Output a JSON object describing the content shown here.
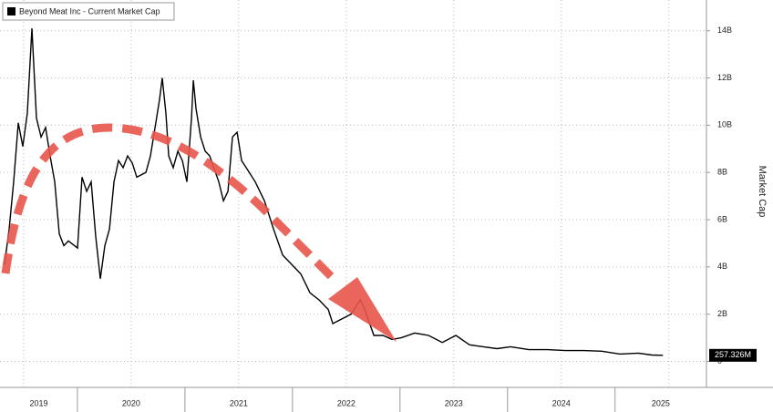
{
  "chart_data": {
    "type": "line",
    "title": "Beyond Meat Inc - Current Market Cap",
    "y_axis_label": "Market Cap",
    "x": [
      2019.322,
      2019.365,
      2019.407,
      2019.45,
      2019.492,
      2019.534,
      2019.577,
      2019.619,
      2019.662,
      2019.704,
      2019.746,
      2019.789,
      2019.831,
      2019.874,
      2019.916,
      2020.001,
      2020.043,
      2020.086,
      2020.128,
      2020.17,
      2020.213,
      2020.255,
      2020.298,
      2020.34,
      2020.382,
      2020.425,
      2020.467,
      2020.51,
      2020.552,
      2020.637,
      2020.679,
      2020.722,
      2020.764,
      2020.789,
      2020.823,
      2020.849,
      2020.891,
      2020.934,
      2020.976,
      2021.018,
      2021.061,
      2021.078,
      2021.103,
      2021.146,
      2021.188,
      2021.23,
      2021.315,
      2021.358,
      2021.4,
      2021.442,
      2021.485,
      2021.527,
      2021.57,
      2021.654,
      2021.739,
      2021.824,
      2021.909,
      2021.994,
      2022.078,
      2022.163,
      2022.248,
      2022.333,
      2022.375,
      2022.46,
      2022.545,
      2022.63,
      2022.672,
      2022.757,
      2022.842,
      2022.926,
      2023.011,
      2023.138,
      2023.266,
      2023.393,
      2023.52,
      2023.647,
      2023.774,
      2023.902,
      2024.029,
      2024.198,
      2024.368,
      2024.538,
      2024.707,
      2024.877,
      2025.046,
      2025.216,
      2025.343,
      2025.445
    ],
    "series": [
      {
        "name": "Beyond Meat Inc - Current Market Cap",
        "color": "#000000",
        "values": [
          4.1,
          5.6,
          7.6,
          10.1,
          9.1,
          10.5,
          14.1,
          10.3,
          9.5,
          9.9,
          8.7,
          7.6,
          5.4,
          4.9,
          5.1,
          4.8,
          7.8,
          7.2,
          7.6,
          5.3,
          3.5,
          4.9,
          5.6,
          7.6,
          8.5,
          8.2,
          8.7,
          8.4,
          7.8,
          8.0,
          8.7,
          9.9,
          11.1,
          12.0,
          10.5,
          8.7,
          8.2,
          8.9,
          8.5,
          7.6,
          10.3,
          11.9,
          10.7,
          9.5,
          8.9,
          8.7,
          7.6,
          6.8,
          7.2,
          9.5,
          9.7,
          8.5,
          8.2,
          7.6,
          6.8,
          5.6,
          4.5,
          4.1,
          3.7,
          2.9,
          2.6,
          2.2,
          1.6,
          1.8,
          2.0,
          2.6,
          2.2,
          1.1,
          1.1,
          0.93,
          1.0,
          1.2,
          1.1,
          0.8,
          1.1,
          0.7,
          0.62,
          0.54,
          0.62,
          0.5,
          0.5,
          0.46,
          0.46,
          0.43,
          0.31,
          0.35,
          0.27,
          0.257326
        ],
        "last_value_label": "257.326M"
      }
    ],
    "xlim": [
      2019.28,
      2025.85
    ],
    "xticks": [
      {
        "value": 2019.5,
        "label": "2019"
      },
      {
        "value": 2020.5,
        "label": "2020"
      },
      {
        "value": 2021.5,
        "label": "2021"
      },
      {
        "value": 2022.5,
        "label": "2022"
      },
      {
        "value": 2023.5,
        "label": "2023"
      },
      {
        "value": 2024.5,
        "label": "2024"
      },
      {
        "value": 2025.5,
        "label": "2025"
      }
    ],
    "ylim": [
      -1.1,
      15.3
    ],
    "yticks": [
      0,
      {
        "value": 2,
        "label": "2B"
      },
      {
        "value": 4,
        "label": "4B"
      },
      {
        "value": 6,
        "label": "6B"
      },
      {
        "value": 8,
        "label": "8B"
      },
      {
        "value": 10,
        "label": "10B"
      },
      {
        "value": 12,
        "label": "12B"
      },
      {
        "value": 14,
        "label": "14B"
      }
    ],
    "grid": true
  }
}
